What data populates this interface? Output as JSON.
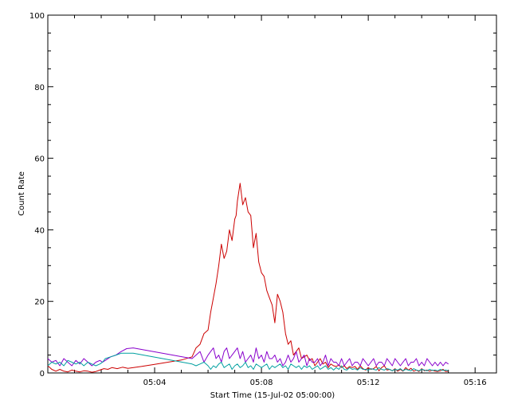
{
  "chart_data": {
    "type": "line",
    "title": "",
    "xlabel": "Start Time (15-Jul-02 05:00:00)",
    "ylabel": "Count Rate",
    "x_unit": "minutes",
    "xlim": [
      0,
      16.8
    ],
    "ylim": [
      0,
      100
    ],
    "x_ticks": [
      {
        "value": 4,
        "label": "05:04"
      },
      {
        "value": 8,
        "label": "05:08"
      },
      {
        "value": 12,
        "label": "05:12"
      },
      {
        "value": 16,
        "label": "05:16"
      }
    ],
    "y_ticks": [
      0,
      20,
      40,
      60,
      80,
      100
    ],
    "grid": false,
    "series": [
      {
        "color": "#cc0000",
        "x": [
          0.0,
          0.15,
          0.3,
          0.45,
          0.6,
          0.75,
          0.9,
          1.05,
          1.2,
          1.35,
          1.5,
          1.65,
          1.8,
          1.95,
          2.1,
          2.25,
          2.4,
          2.6,
          2.8,
          3.0,
          3.5,
          4.0,
          4.5,
          5.0,
          5.4,
          5.55,
          5.7,
          5.85,
          6.0,
          6.1,
          6.2,
          6.3,
          6.4,
          6.5,
          6.6,
          6.7,
          6.8,
          6.9,
          7.0,
          7.05,
          7.1,
          7.2,
          7.3,
          7.4,
          7.5,
          7.6,
          7.7,
          7.8,
          7.9,
          8.0,
          8.1,
          8.2,
          8.3,
          8.4,
          8.5,
          8.6,
          8.7,
          8.8,
          8.9,
          9.0,
          9.1,
          9.2,
          9.3,
          9.4,
          9.5,
          9.6,
          9.7,
          9.8,
          9.9,
          10.0,
          10.1,
          10.2,
          10.3,
          10.4,
          10.5,
          10.6,
          10.7,
          10.8,
          10.9,
          11.0,
          11.1,
          11.2,
          11.3,
          11.4,
          11.5,
          11.6,
          11.7,
          11.8,
          11.9,
          12.0,
          12.1,
          12.2,
          12.3,
          12.4,
          12.5,
          12.6,
          12.7,
          12.8,
          12.9,
          13.0,
          13.1,
          13.2,
          13.3,
          13.4,
          13.5,
          13.6,
          13.7,
          13.8,
          13.9,
          14.0,
          14.1,
          14.2,
          14.3,
          14.4,
          14.5,
          14.6,
          14.7,
          14.8,
          14.9,
          15.0
        ],
        "values": [
          2,
          1,
          0.5,
          1,
          0.5,
          0.3,
          0.8,
          0.5,
          0.3,
          0.6,
          0.5,
          0.2,
          0.4,
          0.8,
          1.2,
          1.0,
          1.5,
          1.2,
          1.6,
          1.3,
          1.8,
          2.4,
          3.0,
          3.6,
          4.5,
          7,
          8,
          11,
          12,
          17,
          21,
          25,
          30,
          36,
          32,
          34,
          40,
          37,
          43,
          44,
          48,
          53,
          47,
          49,
          45,
          44,
          35,
          39,
          31,
          28,
          27,
          23,
          21,
          19,
          14,
          22,
          20,
          17,
          11,
          8,
          9,
          5,
          6,
          7,
          4,
          4.5,
          5,
          3.5,
          4,
          2,
          3,
          4,
          2.5,
          3,
          1.5,
          2.5,
          2,
          1.8,
          2.2,
          1.5,
          2,
          1.2,
          1.8,
          1.5,
          1.8,
          1,
          2,
          1.2,
          0.8,
          1.5,
          1,
          1.2,
          1.8,
          0.6,
          1.5,
          2,
          0.8,
          1,
          0.6,
          1.2,
          0.5,
          1,
          0.5,
          1.5,
          0.8,
          1.3,
          0.5,
          0.8,
          0.4,
          1.2,
          0.6,
          0.8,
          0.5,
          0.8,
          0.5,
          0.4,
          0.6,
          1,
          0.4,
          0.5
        ]
      },
      {
        "color": "#8800cc",
        "x": [
          0.0,
          0.15,
          0.3,
          0.45,
          0.6,
          0.75,
          0.9,
          1.05,
          1.2,
          1.35,
          1.5,
          1.65,
          1.8,
          1.95,
          2.05,
          2.15,
          2.35,
          2.55,
          2.75,
          2.95,
          3.2,
          5.4,
          5.55,
          5.7,
          5.85,
          6.0,
          6.1,
          6.2,
          6.3,
          6.4,
          6.5,
          6.6,
          6.7,
          6.8,
          6.9,
          7.0,
          7.1,
          7.2,
          7.3,
          7.4,
          7.5,
          7.6,
          7.7,
          7.8,
          7.9,
          8.0,
          8.1,
          8.2,
          8.3,
          8.4,
          8.5,
          8.6,
          8.7,
          8.8,
          8.9,
          9.0,
          9.1,
          9.2,
          9.3,
          9.4,
          9.5,
          9.6,
          9.7,
          9.8,
          9.9,
          10.0,
          10.1,
          10.2,
          10.3,
          10.4,
          10.5,
          10.6,
          10.7,
          10.8,
          10.9,
          11.0,
          11.1,
          11.2,
          11.3,
          11.4,
          11.5,
          11.6,
          11.7,
          11.8,
          11.9,
          12.0,
          12.1,
          12.2,
          12.3,
          12.4,
          12.5,
          12.6,
          12.7,
          12.8,
          12.9,
          13.0,
          13.1,
          13.2,
          13.3,
          13.4,
          13.5,
          13.6,
          13.7,
          13.8,
          13.9,
          14.0,
          14.1,
          14.2,
          14.3,
          14.4,
          14.5,
          14.6,
          14.7,
          14.8,
          14.9,
          15.0
        ],
        "values": [
          4,
          3,
          3.5,
          2,
          4,
          3,
          2,
          3.5,
          2.5,
          4,
          3,
          2,
          3,
          3.5,
          3,
          3.5,
          4.5,
          5,
          6,
          6.8,
          7,
          4,
          5,
          6,
          3,
          5,
          6,
          7,
          4,
          5,
          3,
          6,
          7,
          4,
          5,
          6,
          7,
          4,
          6,
          3,
          4,
          5,
          3,
          7,
          4,
          5,
          3,
          6,
          4,
          4,
          5,
          3,
          4,
          2,
          3,
          5,
          3,
          4,
          6,
          3,
          4,
          5,
          2,
          4,
          3,
          3,
          4,
          2,
          3,
          5,
          2,
          4,
          3,
          3,
          2,
          4,
          2,
          3,
          4,
          2,
          3,
          3,
          2,
          4,
          3,
          2,
          3,
          4,
          2,
          3,
          3,
          2,
          4,
          3,
          2,
          4,
          3,
          2,
          3,
          4,
          2,
          3,
          3,
          4,
          2,
          3,
          2,
          4,
          3,
          2,
          3,
          2,
          3,
          2,
          3,
          2.5
        ]
      },
      {
        "color": "#00a0a0",
        "x": [
          0.0,
          0.15,
          0.3,
          0.45,
          0.6,
          0.75,
          0.9,
          1.05,
          1.2,
          1.35,
          1.5,
          1.65,
          1.8,
          1.95,
          2.05,
          2.15,
          2.35,
          2.55,
          2.75,
          2.95,
          3.2,
          5.4,
          5.55,
          5.7,
          5.85,
          6.0,
          6.1,
          6.2,
          6.3,
          6.4,
          6.5,
          6.6,
          6.7,
          6.8,
          6.9,
          7.0,
          7.1,
          7.2,
          7.3,
          7.4,
          7.5,
          7.6,
          7.7,
          7.8,
          7.9,
          8.0,
          8.1,
          8.2,
          8.3,
          8.4,
          8.5,
          8.6,
          8.7,
          8.8,
          8.9,
          9.0,
          9.1,
          9.2,
          9.3,
          9.4,
          9.5,
          9.6,
          9.7,
          9.8,
          9.9,
          10.0,
          10.1,
          10.2,
          10.3,
          10.4,
          10.5,
          10.6,
          10.7,
          10.8,
          10.9,
          11.0,
          11.1,
          11.2,
          11.3,
          11.4,
          11.5,
          11.6,
          11.7,
          11.8,
          11.9,
          12.0,
          12.1,
          12.2,
          12.3,
          12.4,
          12.5,
          12.6,
          12.7,
          12.8,
          12.9,
          13.0,
          13.1,
          13.2,
          13.3,
          13.4,
          13.5,
          13.6,
          13.7,
          13.8,
          13.9,
          14.0,
          14.1,
          14.2,
          14.3,
          14.4,
          14.5,
          14.6,
          14.7,
          14.8,
          14.9,
          15.0
        ],
        "values": [
          2,
          3,
          2.5,
          3,
          2,
          3.5,
          3,
          2.5,
          3,
          2,
          3,
          2.5,
          2,
          2.5,
          3,
          4,
          4.5,
          5,
          5.5,
          5.5,
          5.5,
          2.5,
          2,
          2.5,
          3,
          2,
          1,
          2,
          1.5,
          2.5,
          3,
          1.5,
          2,
          2.5,
          1,
          2,
          2.5,
          1.5,
          2,
          3,
          1.5,
          2,
          1,
          2.5,
          2,
          1.5,
          2,
          2.5,
          1,
          2,
          1.5,
          2,
          2.5,
          1.5,
          2,
          1,
          2.5,
          2,
          1.5,
          2,
          1,
          2,
          1.5,
          2,
          1,
          1.5,
          2,
          1,
          1.5,
          2,
          1,
          1.5,
          0.8,
          1.5,
          1,
          2,
          1,
          0.8,
          1.5,
          1,
          1.2,
          0.8,
          1.5,
          1,
          1,
          0.8,
          1.2,
          1,
          0.8,
          1.5,
          1,
          0.8,
          1.2,
          1,
          0.6,
          1,
          0.8,
          1.2,
          0.6,
          1,
          0.8,
          0.6,
          1.2,
          0.8,
          0.6,
          1,
          0.8,
          0.6,
          1,
          0.7,
          0.8,
          0.6,
          1,
          0.7,
          0.8,
          0.6
        ]
      }
    ]
  }
}
